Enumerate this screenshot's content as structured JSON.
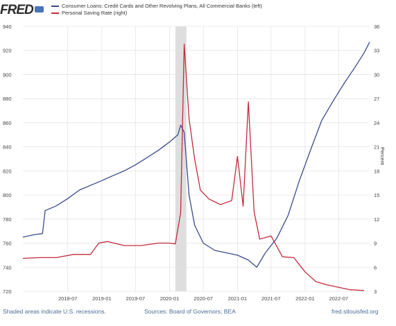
{
  "header": {
    "logo_text": "FRED"
  },
  "legend": {
    "items": [
      {
        "label": "Consumer Loans: Credit Cards and Other Revolving Plans, All Commercial Banks (left)",
        "color": "#3b4a8c"
      },
      {
        "label": "Personal Saving Rate (right)",
        "color": "#c42a3a"
      }
    ]
  },
  "footer": {
    "note": "Shaded areas indicate U.S. recessions.",
    "sources": "Sources: Board of Governors; BEA",
    "site": "fred.stlouisfed.org"
  },
  "chart_data": {
    "type": "line",
    "title": "",
    "xlabel": "",
    "ylabel": "",
    "y2label": "Percent",
    "ylim": [
      720,
      940
    ],
    "y_ticks": [
      720,
      740,
      760,
      780,
      800,
      820,
      840,
      860,
      880,
      900,
      920,
      940
    ],
    "y2lim": [
      3,
      36
    ],
    "y2_ticks": [
      3,
      6,
      9,
      12,
      15,
      18,
      21,
      24,
      27,
      30,
      33,
      36
    ],
    "xlim": [
      "2017-11-01",
      "2022-12-15"
    ],
    "x_ticks": [
      "2018-07",
      "2019-01",
      "2019-07",
      "2020-01",
      "2020-07",
      "2021-01",
      "2021-07",
      "2022-01",
      "2022-07"
    ],
    "recessions": [
      {
        "start": "2020-02-01",
        "end": "2020-04-01"
      }
    ],
    "grid": true,
    "legend_position": "top-left",
    "series": [
      {
        "name": "Consumer Loans: Credit Cards and Other Revolving Plans, All Commercial Banks (left)",
        "axis": "left",
        "color": "#3b4a8c",
        "x": [
          "2017-11-01",
          "2018-01-01",
          "2018-02-15",
          "2018-03-01",
          "2018-05-01",
          "2018-07-01",
          "2018-09-01",
          "2018-11-01",
          "2019-01-01",
          "2019-03-01",
          "2019-05-01",
          "2019-07-01",
          "2019-09-01",
          "2019-11-01",
          "2020-01-01",
          "2020-02-15",
          "2020-03-01",
          "2020-03-20",
          "2020-04-15",
          "2020-05-15",
          "2020-07-01",
          "2020-09-01",
          "2020-11-01",
          "2021-01-01",
          "2021-03-01",
          "2021-04-15",
          "2021-06-01",
          "2021-08-01",
          "2021-10-01",
          "2021-12-01",
          "2022-02-01",
          "2022-04-01",
          "2022-06-01",
          "2022-08-01",
          "2022-10-01",
          "2022-11-15",
          "2022-12-15"
        ],
        "values": [
          765,
          767,
          768,
          787,
          791,
          797,
          804,
          808,
          812,
          816,
          820,
          825,
          831,
          837,
          844,
          850,
          858,
          852,
          800,
          775,
          760,
          754,
          752,
          750,
          746,
          740,
          752,
          764,
          783,
          812,
          838,
          862,
          878,
          893,
          907,
          918,
          927
        ]
      },
      {
        "name": "Personal Saving Rate (right)",
        "axis": "right",
        "color": "#c42a3a",
        "x": [
          "2017-11-01",
          "2018-02-01",
          "2018-05-01",
          "2018-08-01",
          "2018-11-01",
          "2018-12-15",
          "2019-02-01",
          "2019-05-01",
          "2019-08-01",
          "2019-11-01",
          "2020-01-01",
          "2020-02-01",
          "2020-03-01",
          "2020-03-20",
          "2020-04-15",
          "2020-05-15",
          "2020-06-15",
          "2020-08-01",
          "2020-10-01",
          "2020-12-01",
          "2021-01-01",
          "2021-02-01",
          "2021-03-01",
          "2021-04-01",
          "2021-05-01",
          "2021-07-01",
          "2021-09-01",
          "2021-11-01",
          "2022-01-01",
          "2022-03-01",
          "2022-05-01",
          "2022-07-01",
          "2022-09-01",
          "2022-11-15"
        ],
        "values": [
          7.1,
          7.2,
          7.2,
          7.6,
          7.6,
          9.0,
          9.2,
          8.7,
          8.7,
          9.0,
          9.0,
          8.9,
          12.8,
          33.8,
          24.5,
          19.5,
          15.6,
          14.5,
          13.8,
          14.3,
          19.8,
          13.6,
          26.6,
          12.9,
          9.5,
          9.9,
          7.3,
          7.2,
          5.4,
          4.2,
          3.8,
          3.5,
          3.2,
          3.1
        ]
      }
    ]
  }
}
